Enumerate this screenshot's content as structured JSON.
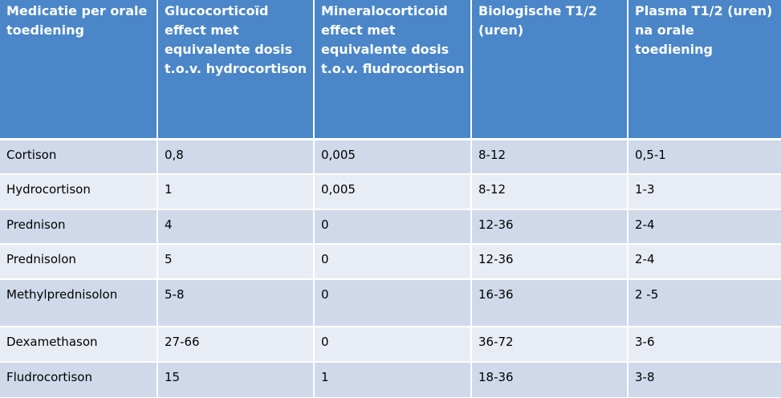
{
  "table": {
    "headers": [
      "Medicatie per orale toediening",
      "Glucocorticoïd effect met equivalente dosis t.o.v. hydrocortison",
      "Mineralocorticoid effect met equivalente dosis t.o.v. fludrocortison",
      "Biologische T1/2 (uren)",
      "Plasma T1/2 (uren) na orale toediening"
    ],
    "rows": [
      [
        "Cortison",
        "0,8",
        "0,005",
        "8-12",
        "0,5-1"
      ],
      [
        "Hydrocortison",
        "1",
        "0,005",
        "8-12",
        "1-3"
      ],
      [
        "Prednison",
        "4",
        "0",
        "12-36",
        "2-4"
      ],
      [
        "Prednisolon",
        "5",
        "0",
        "12-36",
        "2-4"
      ],
      [
        "Methylprednisolon",
        "5-8",
        "0",
        "16-36",
        "2 -5"
      ],
      [
        "Dexamethason",
        "27-66",
        "0",
        "36-72",
        "3-6"
      ],
      [
        "Fludrocortison",
        "15",
        "1",
        "18-36",
        "3-8"
      ]
    ]
  },
  "colors": {
    "header_bg": "#4a86c8",
    "header_text": "#ffffff",
    "row_odd_bg": "#cfd9ea",
    "row_even_bg": "#e8edf5",
    "cell_text": "#000000"
  }
}
